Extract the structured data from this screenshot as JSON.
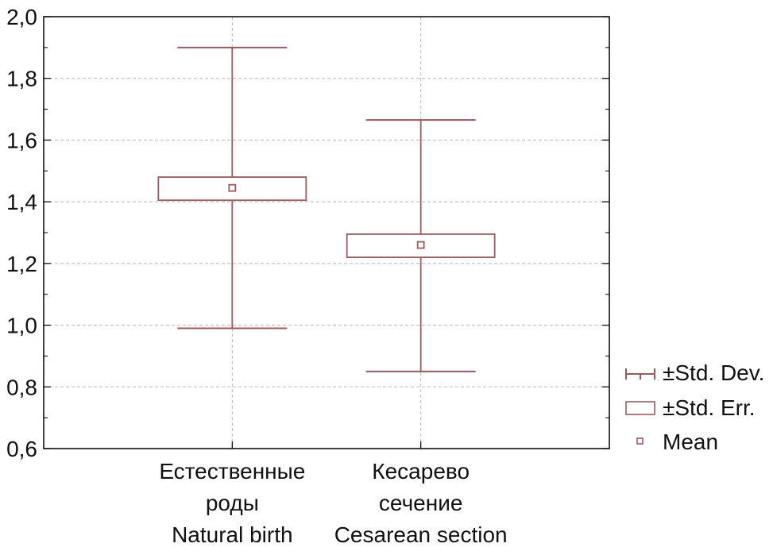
{
  "colors": {
    "series": "#9a5a5e",
    "grid": "#b8b8b8",
    "axis": "#000000",
    "text": "#111111"
  },
  "chart_data": {
    "type": "box",
    "title": "",
    "xlabel": "",
    "ylabel": "",
    "ylim": [
      0.6,
      2.0
    ],
    "yticks": [
      "0,6",
      "0,8",
      "1,0",
      "1,2",
      "1,4",
      "1,6",
      "1,8",
      "2,0"
    ],
    "ytick_values": [
      0.6,
      0.8,
      1.0,
      1.2,
      1.4,
      1.6,
      1.8,
      2.0
    ],
    "grid": true,
    "legend_position": "right",
    "categories": [
      {
        "lines": [
          "Естественные",
          "роды",
          "Natural birth"
        ]
      },
      {
        "lines": [
          "Кесарево",
          "сечение",
          "Cesarean section"
        ]
      }
    ],
    "groups": [
      {
        "mean": 1.445,
        "se_low": 1.405,
        "se_high": 1.48,
        "sd_low": 0.99,
        "sd_high": 1.9
      },
      {
        "mean": 1.26,
        "se_low": 1.22,
        "se_high": 1.295,
        "sd_low": 0.85,
        "sd_high": 1.665
      }
    ],
    "legend": {
      "std_dev": "±Std. Dev.",
      "std_err": "±Std. Err.",
      "mean": "Mean"
    }
  }
}
